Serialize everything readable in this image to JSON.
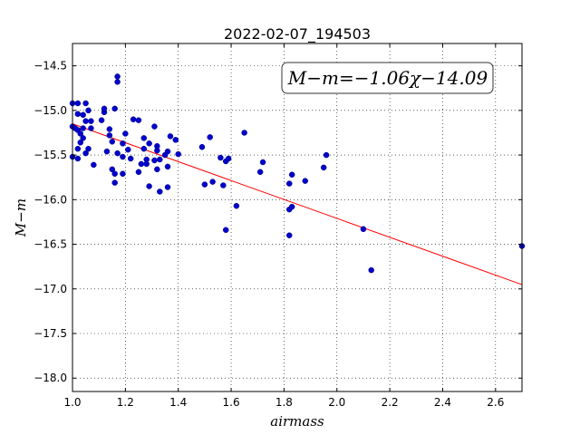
{
  "chart_data": {
    "type": "scatter",
    "title": "2022-02-07_194503",
    "xlabel": "airmass",
    "ylabel": "M−m",
    "xlim": [
      1.0,
      2.7
    ],
    "ylim": [
      -18.15,
      -14.25
    ],
    "y_inverted": true,
    "grid": true,
    "annotation": "M−m=−1.06χ−14.09",
    "x_ticks": [
      1.0,
      1.2,
      1.4,
      1.6,
      1.8,
      2.0,
      2.2,
      2.4,
      2.6
    ],
    "x_tick_labels": [
      "1.0",
      "1.2",
      "1.4",
      "1.6",
      "1.8",
      "2.0",
      "2.2",
      "2.4",
      "2.6"
    ],
    "y_ticks": [
      -14.5,
      -15.0,
      -15.5,
      -16.0,
      -16.5,
      -17.0,
      -17.5,
      -18.0
    ],
    "y_tick_labels": [
      "−14.5",
      "−15.0",
      "−15.5",
      "−16.0",
      "−16.5",
      "−17.0",
      "−17.5",
      "−18.0"
    ],
    "fit": {
      "slope": -1.06,
      "intercept": -14.09,
      "color": "#ff0000"
    },
    "point_color": "#0000cc",
    "points": [
      [
        1.0,
        -14.92
      ],
      [
        1.0,
        -15.18
      ],
      [
        1.0,
        -15.52
      ],
      [
        1.01,
        -15.2
      ],
      [
        1.02,
        -14.92
      ],
      [
        1.02,
        -15.04
      ],
      [
        1.02,
        -15.22
      ],
      [
        1.02,
        -15.43
      ],
      [
        1.02,
        -15.54
      ],
      [
        1.03,
        -15.36
      ],
      [
        1.03,
        -15.26
      ],
      [
        1.04,
        -15.2
      ],
      [
        1.04,
        -15.31
      ],
      [
        1.04,
        -15.05
      ],
      [
        1.05,
        -14.92
      ],
      [
        1.05,
        -15.12
      ],
      [
        1.05,
        -15.48
      ],
      [
        1.06,
        -15.0
      ],
      [
        1.06,
        -15.43
      ],
      [
        1.07,
        -15.12
      ],
      [
        1.07,
        -15.2
      ],
      [
        1.08,
        -15.61
      ],
      [
        1.11,
        -15.11
      ],
      [
        1.12,
        -15.02
      ],
      [
        1.12,
        -14.98
      ],
      [
        1.13,
        -15.46
      ],
      [
        1.14,
        -15.21
      ],
      [
        1.14,
        -15.28
      ],
      [
        1.15,
        -15.35
      ],
      [
        1.15,
        -15.66
      ],
      [
        1.16,
        -15.81
      ],
      [
        1.16,
        -15.71
      ],
      [
        1.16,
        -14.98
      ],
      [
        1.17,
        -14.62
      ],
      [
        1.17,
        -14.68
      ],
      [
        1.17,
        -15.48
      ],
      [
        1.19,
        -15.52
      ],
      [
        1.19,
        -15.37
      ],
      [
        1.19,
        -15.71
      ],
      [
        1.2,
        -15.26
      ],
      [
        1.21,
        -15.44
      ],
      [
        1.22,
        -15.54
      ],
      [
        1.23,
        -15.1
      ],
      [
        1.25,
        -15.11
      ],
      [
        1.25,
        -15.69
      ],
      [
        1.26,
        -15.6
      ],
      [
        1.27,
        -15.43
      ],
      [
        1.27,
        -15.31
      ],
      [
        1.28,
        -15.55
      ],
      [
        1.28,
        -15.6
      ],
      [
        1.29,
        -15.37
      ],
      [
        1.29,
        -15.85
      ],
      [
        1.31,
        -15.18
      ],
      [
        1.31,
        -15.56
      ],
      [
        1.32,
        -15.66
      ],
      [
        1.32,
        -15.4
      ],
      [
        1.32,
        -15.45
      ],
      [
        1.33,
        -15.91
      ],
      [
        1.33,
        -15.55
      ],
      [
        1.35,
        -15.5
      ],
      [
        1.36,
        -15.46
      ],
      [
        1.36,
        -15.86
      ],
      [
        1.36,
        -15.63
      ],
      [
        1.37,
        -15.29
      ],
      [
        1.39,
        -15.33
      ],
      [
        1.4,
        -15.49
      ],
      [
        1.49,
        -15.41
      ],
      [
        1.5,
        -15.83
      ],
      [
        1.52,
        -15.3
      ],
      [
        1.53,
        -15.8
      ],
      [
        1.56,
        -15.53
      ],
      [
        1.57,
        -15.84
      ],
      [
        1.58,
        -16.34
      ],
      [
        1.58,
        -15.57
      ],
      [
        1.59,
        -15.54
      ],
      [
        1.62,
        -16.07
      ],
      [
        1.65,
        -15.25
      ],
      [
        1.71,
        -15.69
      ],
      [
        1.72,
        -15.58
      ],
      [
        1.82,
        -16.11
      ],
      [
        1.82,
        -16.4
      ],
      [
        1.82,
        -15.82
      ],
      [
        1.83,
        -16.08
      ],
      [
        1.83,
        -15.72
      ],
      [
        1.88,
        -15.79
      ],
      [
        1.95,
        -15.64
      ],
      [
        1.96,
        -15.5
      ],
      [
        2.1,
        -16.33
      ],
      [
        2.13,
        -16.79
      ],
      [
        2.7,
        -16.52
      ]
    ]
  }
}
